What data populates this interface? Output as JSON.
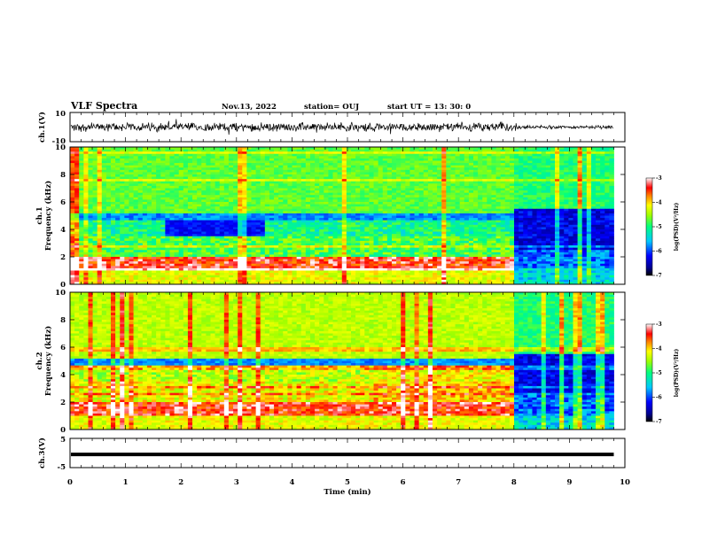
{
  "header": {
    "title": "VLF Spectra",
    "date": "Nov.13, 2022",
    "station": "station= OUJ",
    "start": "start UT =   13: 30: 0"
  },
  "chart_data": [
    {
      "type": "line",
      "name": "waveform-ch1",
      "ylabel": "ch.1(V)",
      "ylim": [
        -10,
        10
      ],
      "yticks": [
        "10",
        "-10"
      ],
      "x_range_min": [
        0,
        9.8
      ],
      "description_values": {
        "typical_amplitude_v": 2.5,
        "amplitude_after_8min_v": 1.0
      }
    },
    {
      "type": "heatmap",
      "name": "spectrogram-ch1",
      "ylabel": "ch.1",
      "ylabel2": "Frequency (kHz)",
      "ylim": [
        0,
        10
      ],
      "yticks": [
        "0",
        "2",
        "4",
        "6",
        "8",
        "10"
      ],
      "colorbar": {
        "label": "log(PSD)(V²/Hz)",
        "range": [
          -7,
          -3
        ],
        "ticks": [
          "-3",
          "-4",
          "-5",
          "-6",
          "-7"
        ]
      }
    },
    {
      "type": "heatmap",
      "name": "spectrogram-ch2",
      "ylabel": "ch.2",
      "ylabel2": "Frequency (kHz)",
      "ylim": [
        0,
        10
      ],
      "yticks": [
        "0",
        "2",
        "4",
        "6",
        "8",
        "10"
      ],
      "colorbar": {
        "label": "log(PSD)(V²/Hz)",
        "range": [
          -7,
          -3
        ],
        "ticks": [
          "-3",
          "-4",
          "-5",
          "-6",
          "-7"
        ]
      }
    },
    {
      "type": "line",
      "name": "waveform-ch3",
      "ylabel": "ch.3(V)",
      "ylim": [
        -5,
        5
      ],
      "yticks": [
        "5",
        "-5"
      ],
      "values_constant_v": -0.5
    }
  ],
  "xaxis": {
    "label": "Time (min)",
    "range": [
      0,
      10
    ],
    "ticks": [
      "0",
      "1",
      "2",
      "3",
      "4",
      "5",
      "6",
      "7",
      "8",
      "9",
      "10"
    ]
  },
  "colors": {
    "ink": "#000000",
    "background": "#ffffff"
  }
}
